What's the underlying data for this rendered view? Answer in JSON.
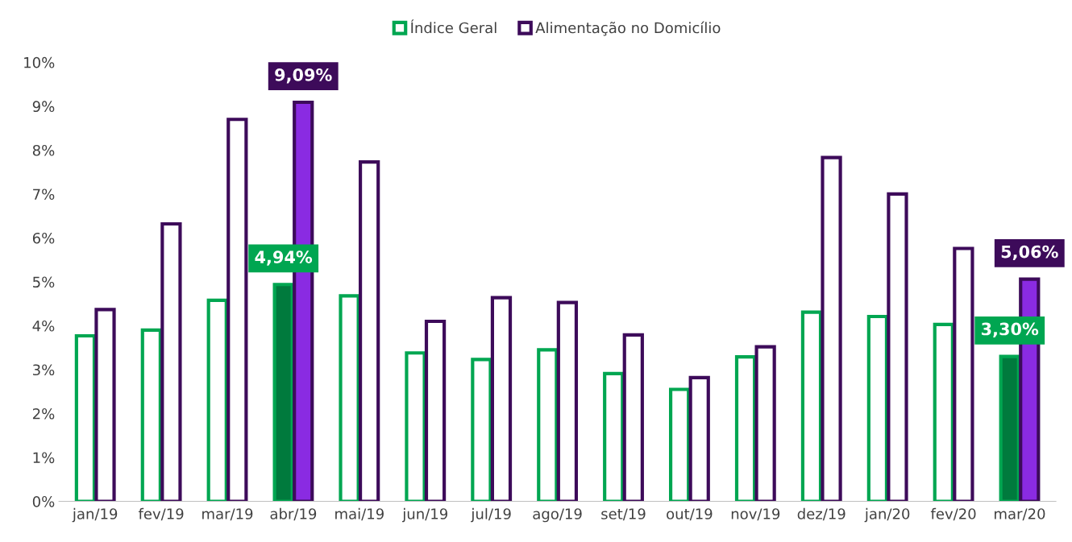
{
  "chart_data": {
    "type": "bar",
    "categories": [
      "jan/19",
      "fev/19",
      "mar/19",
      "abr/19",
      "mai/19",
      "jun/19",
      "jul/19",
      "ago/19",
      "set/19",
      "out/19",
      "nov/19",
      "dez/19",
      "jan/20",
      "fev/20",
      "mar/20"
    ],
    "series": [
      {
        "name": "Índice Geral",
        "color": "#00a651",
        "colors": [
          "#ffffff",
          "#ffffff",
          "#ffffff",
          "#007a3d",
          "#ffffff",
          "#ffffff",
          "#ffffff",
          "#ffffff",
          "#ffffff",
          "#ffffff",
          "#ffffff",
          "#ffffff",
          "#ffffff",
          "#ffffff",
          "#007a3d"
        ],
        "values": [
          3.77,
          3.9,
          4.58,
          4.94,
          4.68,
          3.38,
          3.23,
          3.45,
          2.91,
          2.55,
          3.29,
          4.31,
          4.21,
          4.03,
          3.3
        ],
        "value_labels": [
          null,
          null,
          null,
          "4,94%",
          null,
          null,
          null,
          null,
          null,
          null,
          null,
          null,
          null,
          null,
          "3,30%"
        ]
      },
      {
        "name": "Alimentação no Domicílio",
        "color": "#3d0b5a",
        "colors": [
          "#ffffff",
          "#ffffff",
          "#ffffff",
          "#8a2be2",
          "#ffffff",
          "#ffffff",
          "#ffffff",
          "#ffffff",
          "#ffffff",
          "#ffffff",
          "#ffffff",
          "#ffffff",
          "#ffffff",
          "#ffffff",
          "#8a2be2"
        ],
        "values": [
          4.37,
          6.32,
          8.7,
          9.09,
          7.73,
          4.1,
          4.64,
          4.53,
          3.79,
          2.82,
          3.52,
          7.83,
          7.0,
          5.76,
          5.06
        ],
        "value_labels": [
          null,
          null,
          null,
          "9,09%",
          null,
          null,
          null,
          null,
          null,
          null,
          null,
          null,
          null,
          null,
          "5,06%"
        ]
      }
    ],
    "ylim": [
      0,
      10
    ],
    "yticks": [
      {
        "value": 0,
        "label": "0%"
      },
      {
        "value": 1,
        "label": "1%"
      },
      {
        "value": 2,
        "label": "2%"
      },
      {
        "value": 3,
        "label": "3%"
      },
      {
        "value": 4,
        "label": "4%"
      },
      {
        "value": 5,
        "label": "5%"
      },
      {
        "value": 6,
        "label": "6%"
      },
      {
        "value": 7,
        "label": "7%"
      },
      {
        "value": 8,
        "label": "8%"
      },
      {
        "value": 9,
        "label": "9%"
      },
      {
        "value": 10,
        "label": "10%"
      }
    ],
    "legend": "top",
    "grid": false
  }
}
